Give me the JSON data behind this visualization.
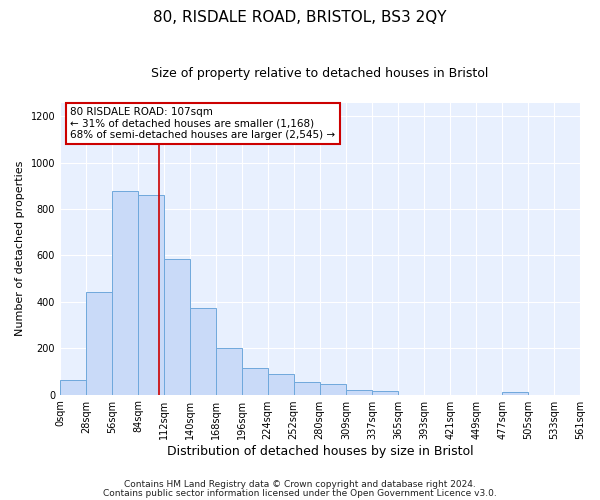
{
  "title": "80, RISDALE ROAD, BRISTOL, BS3 2QY",
  "subtitle": "Size of property relative to detached houses in Bristol",
  "xlabel": "Distribution of detached houses by size in Bristol",
  "ylabel": "Number of detached properties",
  "bar_color": "#c9daf8",
  "bar_edge_color": "#6fa8dc",
  "bg_color": "#ffffff",
  "plot_bg_color": "#e8f0fe",
  "annotation_box_color": "#ffffff",
  "annotation_box_edge": "#cc0000",
  "vline_color": "#cc0000",
  "vline_x": 107,
  "annotation_line1": "80 RISDALE ROAD: 107sqm",
  "annotation_line2": "← 31% of detached houses are smaller (1,168)",
  "annotation_line3": "68% of semi-detached houses are larger (2,545) →",
  "footer1": "Contains HM Land Registry data © Crown copyright and database right 2024.",
  "footer2": "Contains public sector information licensed under the Open Government Licence v3.0.",
  "bin_edges": [
    0,
    28,
    56,
    84,
    112,
    140,
    168,
    196,
    224,
    252,
    280,
    309,
    337,
    365,
    393,
    421,
    449,
    477,
    505,
    533,
    561
  ],
  "bin_counts": [
    65,
    443,
    880,
    862,
    583,
    375,
    203,
    113,
    88,
    55,
    45,
    20,
    15,
    0,
    0,
    0,
    0,
    13,
    0,
    0
  ],
  "ylim": [
    0,
    1260
  ],
  "yticks": [
    0,
    200,
    400,
    600,
    800,
    1000,
    1200
  ],
  "tick_labels": [
    "0sqm",
    "28sqm",
    "56sqm",
    "84sqm",
    "112sqm",
    "140sqm",
    "168sqm",
    "196sqm",
    "224sqm",
    "252sqm",
    "280sqm",
    "309sqm",
    "337sqm",
    "365sqm",
    "393sqm",
    "421sqm",
    "449sqm",
    "477sqm",
    "505sqm",
    "533sqm",
    "561sqm"
  ],
  "grid_color": "#ffffff",
  "title_fontsize": 11,
  "subtitle_fontsize": 9,
  "ylabel_fontsize": 8,
  "xlabel_fontsize": 9,
  "tick_fontsize": 7,
  "footer_fontsize": 6.5
}
